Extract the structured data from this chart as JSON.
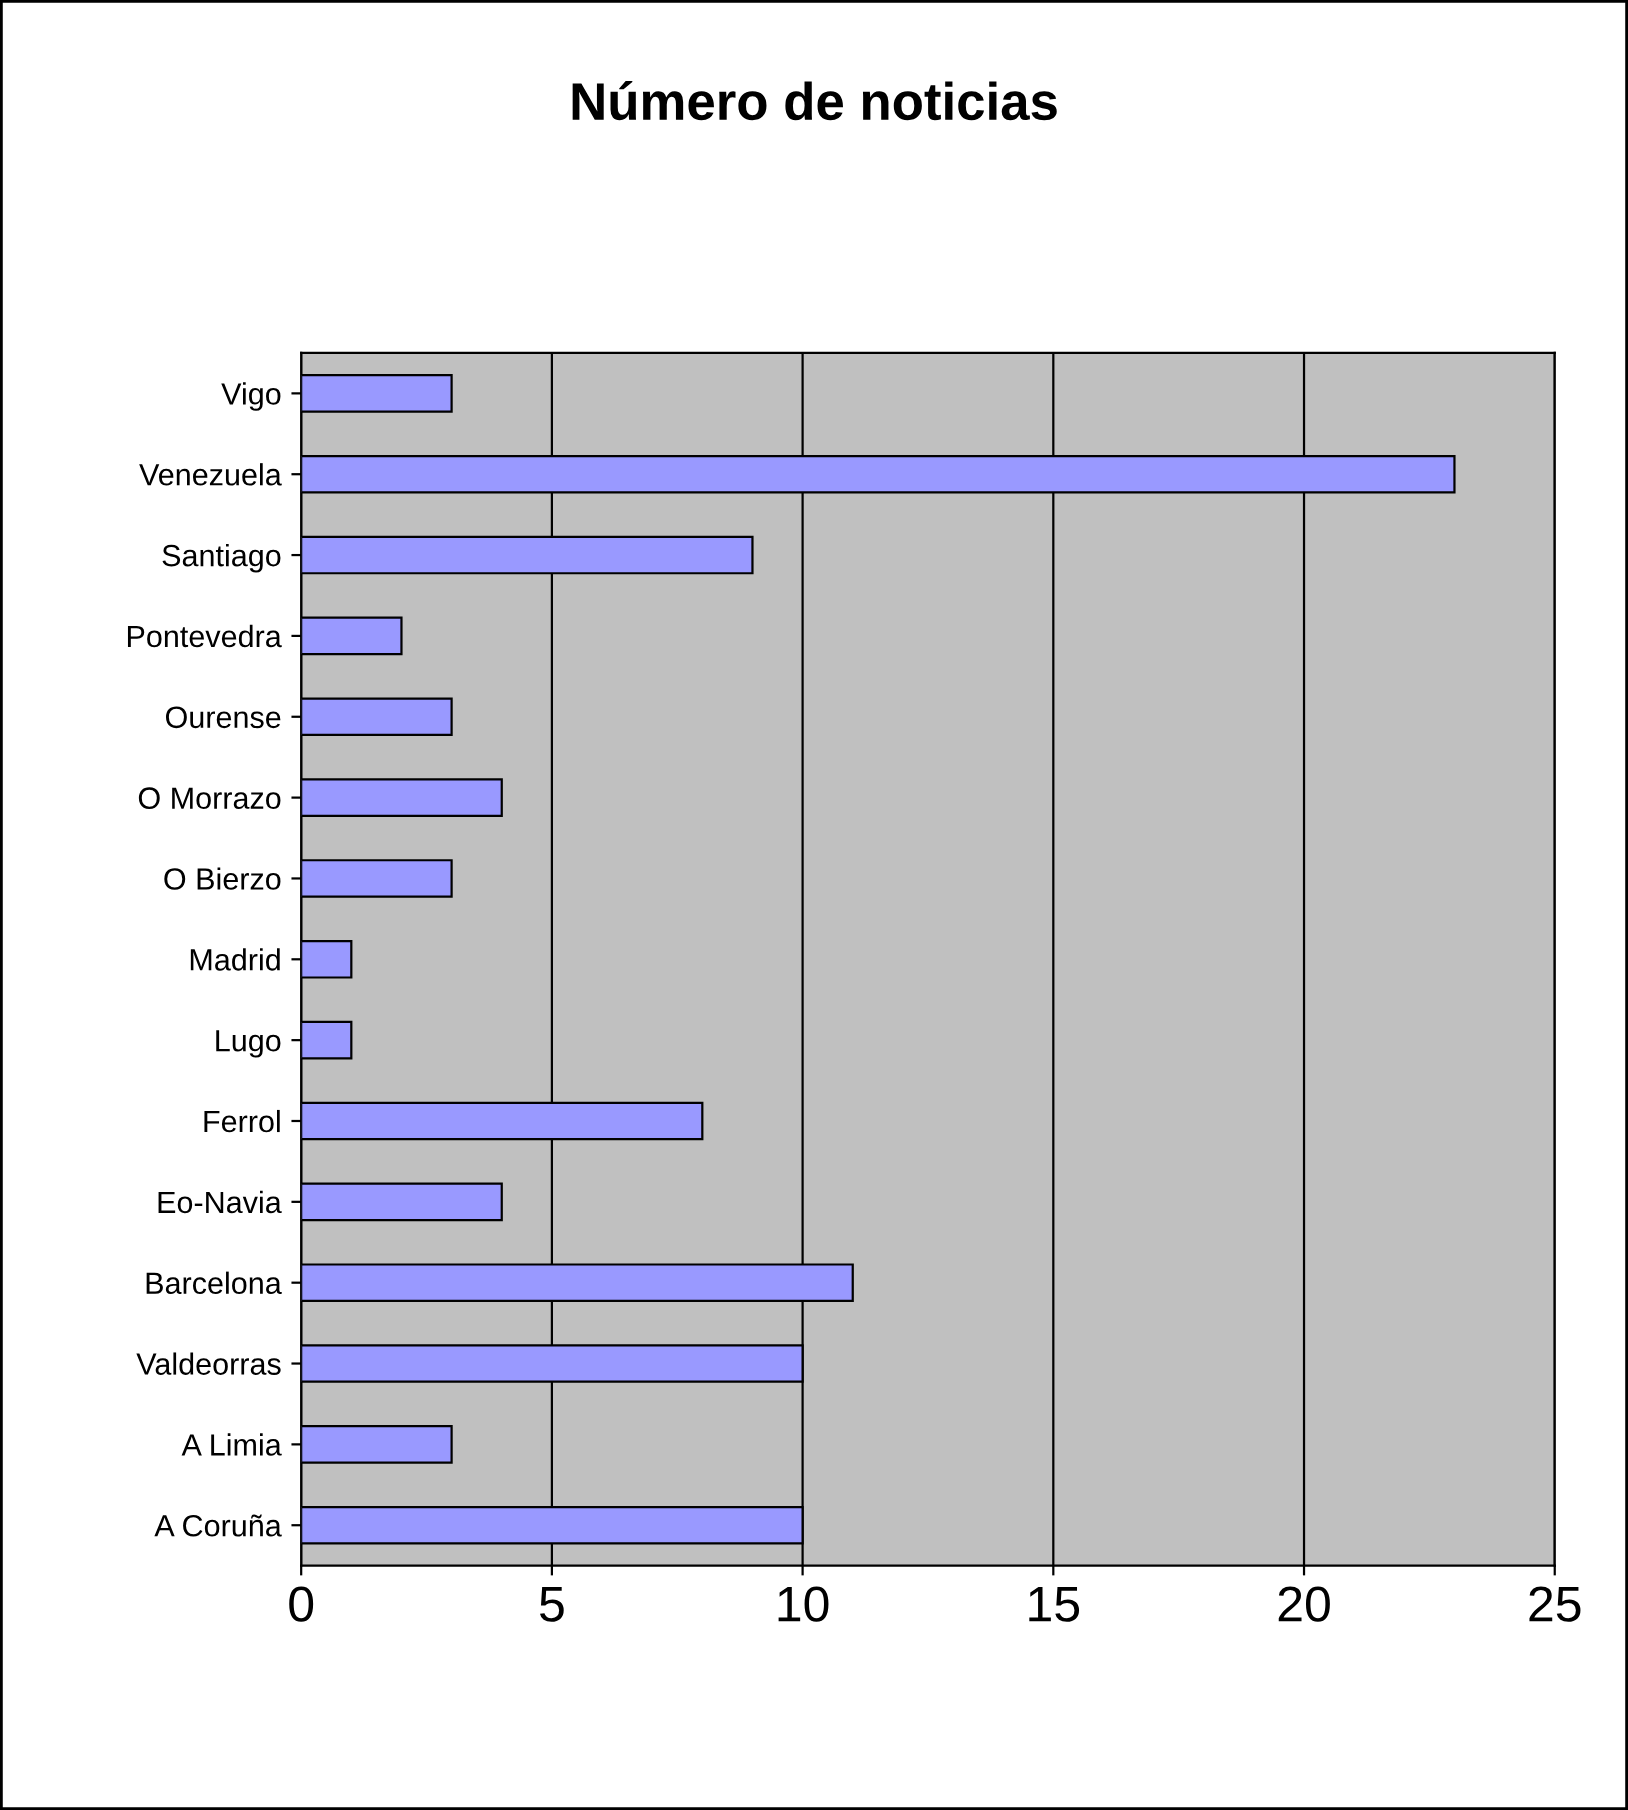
{
  "chart_data": {
    "type": "bar",
    "orientation": "horizontal",
    "title": "Número de noticias",
    "categories": [
      "Vigo",
      "Venezuela",
      "Santiago",
      "Pontevedra",
      "Ourense",
      "O Morrazo",
      "O Bierzo",
      "Madrid",
      "Lugo",
      "Ferrol",
      "Eo-Navia",
      "Barcelona",
      "Valdeorras",
      "A Limia",
      "A Coruña"
    ],
    "values": [
      3,
      23,
      9,
      2,
      3,
      4,
      3,
      1,
      1,
      8,
      4,
      11,
      10,
      3,
      10
    ],
    "color": "#9999ff",
    "xlim": [
      0,
      25
    ],
    "xticks": [
      0,
      5,
      10,
      15,
      20,
      25
    ],
    "grid": "x"
  }
}
